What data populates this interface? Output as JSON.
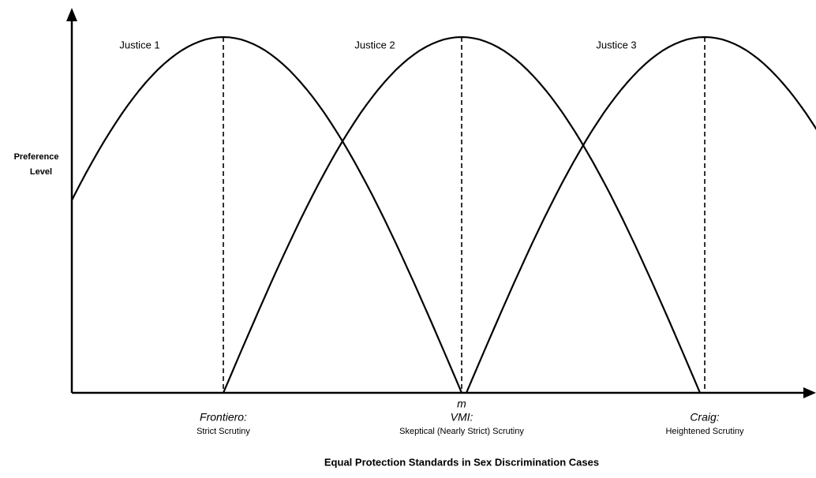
{
  "curves": [
    {
      "label": "Justice 1"
    },
    {
      "label": "Justice 2"
    },
    {
      "label": "Justice 3"
    }
  ],
  "y_axis_label": [
    "Preference",
    "Level"
  ],
  "median_marker": "m",
  "standards": [
    {
      "case": "Frontiero:",
      "standard": "Strict Scrutiny"
    },
    {
      "case": "VMI:",
      "standard": "Skeptical (Nearly Strict) Scrutiny"
    },
    {
      "case": "Craig:",
      "standard": "Heightened Scrutiny"
    }
  ],
  "caption": "Equal Protection Standards in Sex Discrimination Cases"
}
